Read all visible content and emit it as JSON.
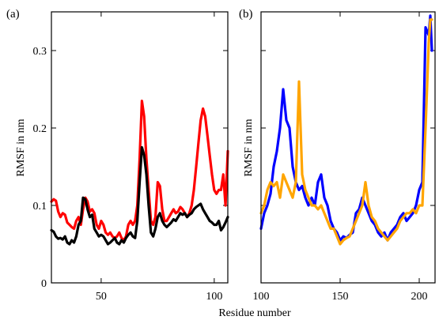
{
  "xlabel": "Residue number",
  "chart_data": [
    {
      "type": "line",
      "panel_label": "(a)",
      "ylabel": "RMSF in nm",
      "xlim": [
        28,
        106
      ],
      "ylim": [
        0,
        0.35
      ],
      "xticks": [
        50,
        100
      ],
      "yticks": [
        0,
        0.1,
        0.2,
        0.3
      ],
      "xtick_labels": [
        "50",
        "100"
      ],
      "ytick_labels": [
        "0",
        "0.1",
        "0.2",
        "0.3"
      ],
      "grid": false,
      "series": [
        {
          "color": "#ff0000",
          "x": [
            28,
            29,
            30,
            31,
            32,
            33,
            34,
            35,
            36,
            37,
            38,
            39,
            40,
            41,
            42,
            43,
            44,
            45,
            46,
            47,
            48,
            49,
            50,
            51,
            52,
            53,
            54,
            55,
            56,
            57,
            58,
            59,
            60,
            61,
            62,
            63,
            64,
            65,
            66,
            67,
            68,
            69,
            70,
            71,
            72,
            73,
            74,
            75,
            76,
            77,
            78,
            79,
            80,
            81,
            82,
            83,
            84,
            85,
            86,
            87,
            88,
            89,
            90,
            91,
            92,
            93,
            94,
            95,
            96,
            97,
            98,
            99,
            100,
            101,
            102,
            103,
            104,
            105,
            106
          ],
          "values": [
            0.105,
            0.108,
            0.106,
            0.092,
            0.085,
            0.09,
            0.088,
            0.078,
            0.075,
            0.072,
            0.07,
            0.08,
            0.085,
            0.075,
            0.095,
            0.11,
            0.105,
            0.092,
            0.095,
            0.09,
            0.075,
            0.07,
            0.08,
            0.075,
            0.065,
            0.062,
            0.065,
            0.06,
            0.058,
            0.06,
            0.065,
            0.058,
            0.055,
            0.06,
            0.075,
            0.08,
            0.075,
            0.08,
            0.1,
            0.16,
            0.235,
            0.215,
            0.16,
            0.12,
            0.08,
            0.075,
            0.085,
            0.13,
            0.125,
            0.095,
            0.08,
            0.08,
            0.085,
            0.09,
            0.095,
            0.09,
            0.092,
            0.098,
            0.095,
            0.09,
            0.085,
            0.09,
            0.1,
            0.12,
            0.15,
            0.18,
            0.21,
            0.225,
            0.215,
            0.19,
            0.165,
            0.14,
            0.12,
            0.115,
            0.12,
            0.12,
            0.14,
            0.1,
            0.17
          ]
        },
        {
          "color": "#000000",
          "x": [
            28,
            29,
            30,
            31,
            32,
            33,
            34,
            35,
            36,
            37,
            38,
            39,
            40,
            41,
            42,
            43,
            44,
            45,
            46,
            47,
            48,
            49,
            50,
            51,
            52,
            53,
            54,
            55,
            56,
            57,
            58,
            59,
            60,
            61,
            62,
            63,
            64,
            65,
            66,
            67,
            68,
            69,
            70,
            71,
            72,
            73,
            74,
            75,
            76,
            77,
            78,
            79,
            80,
            81,
            82,
            83,
            84,
            85,
            86,
            87,
            88,
            89,
            90,
            91,
            92,
            93,
            94,
            95,
            96,
            97,
            98,
            99,
            100,
            101,
            102,
            103,
            104,
            105,
            106
          ],
          "values": [
            0.068,
            0.066,
            0.06,
            0.057,
            0.058,
            0.056,
            0.06,
            0.052,
            0.05,
            0.055,
            0.052,
            0.06,
            0.075,
            0.08,
            0.11,
            0.108,
            0.095,
            0.085,
            0.088,
            0.07,
            0.065,
            0.06,
            0.062,
            0.06,
            0.055,
            0.05,
            0.052,
            0.055,
            0.058,
            0.052,
            0.05,
            0.055,
            0.052,
            0.058,
            0.062,
            0.065,
            0.06,
            0.058,
            0.08,
            0.13,
            0.175,
            0.165,
            0.14,
            0.1,
            0.065,
            0.06,
            0.07,
            0.085,
            0.09,
            0.08,
            0.075,
            0.072,
            0.075,
            0.078,
            0.082,
            0.08,
            0.085,
            0.09,
            0.088,
            0.09,
            0.085,
            0.088,
            0.09,
            0.095,
            0.098,
            0.1,
            0.102,
            0.095,
            0.09,
            0.085,
            0.08,
            0.078,
            0.075,
            0.075,
            0.08,
            0.068,
            0.072,
            0.078,
            0.085
          ]
        }
      ]
    },
    {
      "type": "line",
      "panel_label": "(b)",
      "ylabel": "RMSF in nm",
      "xlim": [
        100,
        210
      ],
      "ylim": [
        0,
        0.35
      ],
      "xticks": [
        100,
        150,
        200
      ],
      "yticks": [
        0,
        0.1,
        0.2,
        0.3
      ],
      "xtick_labels": [
        "100",
        "150",
        "200"
      ],
      "ytick_labels": [],
      "grid": false,
      "series": [
        {
          "color": "#0000ff",
          "x": [
            100,
            102,
            104,
            106,
            108,
            110,
            112,
            114,
            116,
            118,
            120,
            122,
            124,
            126,
            128,
            130,
            132,
            134,
            136,
            138,
            140,
            142,
            144,
            146,
            148,
            150,
            152,
            154,
            156,
            158,
            160,
            162,
            164,
            166,
            168,
            170,
            172,
            174,
            176,
            178,
            180,
            182,
            184,
            186,
            188,
            190,
            192,
            194,
            196,
            198,
            200,
            202,
            204,
            206,
            207,
            208
          ],
          "values": [
            0.07,
            0.09,
            0.1,
            0.115,
            0.15,
            0.17,
            0.2,
            0.25,
            0.21,
            0.2,
            0.15,
            0.13,
            0.12,
            0.125,
            0.11,
            0.1,
            0.11,
            0.1,
            0.13,
            0.14,
            0.11,
            0.1,
            0.08,
            0.07,
            0.065,
            0.055,
            0.06,
            0.058,
            0.062,
            0.065,
            0.09,
            0.095,
            0.11,
            0.1,
            0.09,
            0.08,
            0.075,
            0.065,
            0.06,
            0.065,
            0.055,
            0.065,
            0.07,
            0.075,
            0.085,
            0.09,
            0.08,
            0.085,
            0.09,
            0.1,
            0.12,
            0.13,
            0.33,
            0.32,
            0.345,
            0.3
          ]
        },
        {
          "color": "#ffa500",
          "x": [
            100,
            102,
            104,
            106,
            108,
            110,
            112,
            114,
            116,
            118,
            120,
            122,
            124,
            126,
            128,
            130,
            132,
            134,
            136,
            138,
            140,
            142,
            144,
            146,
            148,
            150,
            152,
            154,
            156,
            158,
            160,
            162,
            164,
            166,
            168,
            170,
            172,
            174,
            176,
            178,
            180,
            182,
            184,
            186,
            188,
            190,
            192,
            194,
            196,
            198,
            200,
            202,
            204,
            206,
            207,
            208
          ],
          "values": [
            0.09,
            0.1,
            0.12,
            0.13,
            0.125,
            0.13,
            0.11,
            0.14,
            0.13,
            0.12,
            0.11,
            0.13,
            0.26,
            0.14,
            0.12,
            0.11,
            0.1,
            0.1,
            0.095,
            0.1,
            0.09,
            0.08,
            0.07,
            0.07,
            0.06,
            0.05,
            0.055,
            0.058,
            0.06,
            0.07,
            0.08,
            0.09,
            0.1,
            0.13,
            0.1,
            0.085,
            0.08,
            0.07,
            0.065,
            0.06,
            0.055,
            0.06,
            0.065,
            0.07,
            0.08,
            0.085,
            0.09,
            0.09,
            0.095,
            0.09,
            0.1,
            0.1,
            0.2,
            0.31,
            0.34,
            0.34
          ]
        }
      ]
    }
  ]
}
